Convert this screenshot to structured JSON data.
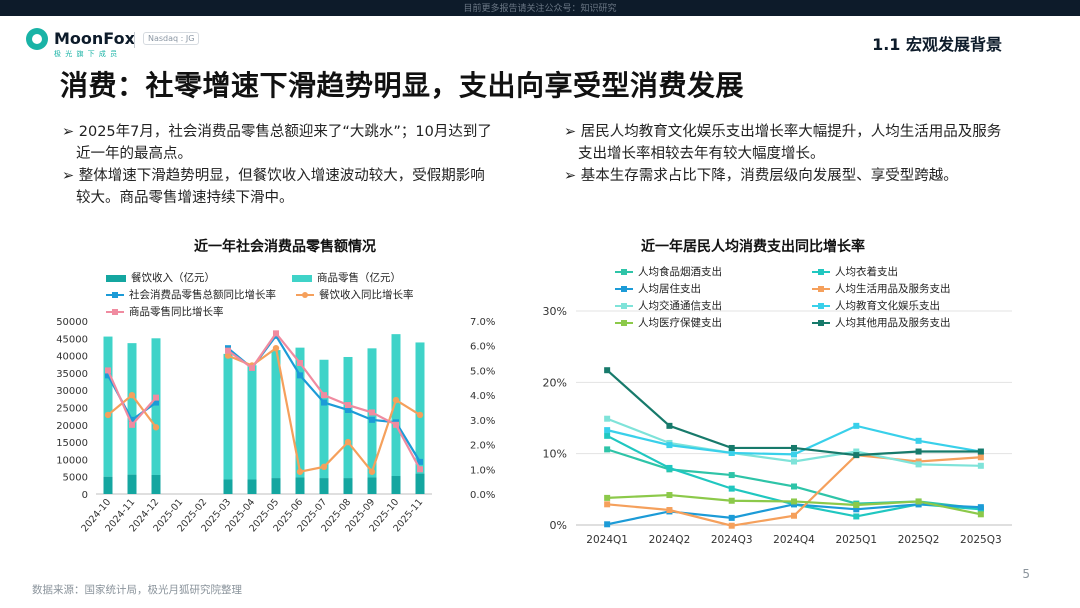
{
  "topbar_text": "目前更多报告请关注公众号：知识研究",
  "brand": {
    "name": "MoonFox",
    "sub": "极 光 旗 下 成 员",
    "badge": "Nasdaq : JG"
  },
  "section_title": "1.1 宏观发展背景",
  "title": "消费：社零增速下滑趋势明显，支出向享受型消费发展",
  "bullets_left": [
    "➢ 2025年7月，社会消费品零售总额迎来了“大跳水”；10月达到了近一年的最高点。",
    "➢ 整体增速下滑趋势明显，但餐饮收入增速波动较大，受假期影响较大。商品零售增速持续下滑中。"
  ],
  "bullets_right": [
    "➢ 居民人均教育文化娱乐支出增长率大幅提升，人均生活用品及服务支出增长率相较去年有较大幅度增长。",
    "➢ 基本生存需求占比下降，消费层级向发展型、享受型跨越。"
  ],
  "footer": "数据来源：国家统计局，极光月狐研究院整理",
  "page_number": "5",
  "colors": {
    "teal_dark": "#14a6a0",
    "teal_light": "#3fd3c8",
    "blue": "#1c9bd7",
    "orange": "#f5a05c",
    "pink": "#f08ba0"
  },
  "chart_data": [
    {
      "type": "bar",
      "title": "近一年社会消费品零售额情况",
      "categories": [
        "2024-10",
        "2024-11",
        "2024-12",
        "2025-01",
        "2025-02",
        "2025-03",
        "2025-04",
        "2025-05",
        "2025-06",
        "2025-07",
        "2025-08",
        "2025-09",
        "2025-10",
        "2025-11"
      ],
      "series": [
        {
          "name": "餐饮收入（亿元）",
          "kind": "bar",
          "axis": "left",
          "color": "#14a6a0",
          "values": [
            5000,
            5600,
            5500,
            null,
            null,
            4200,
            4200,
            4600,
            4800,
            4600,
            4600,
            4800,
            5200,
            5900
          ]
        },
        {
          "name": "商品零售（亿元）",
          "kind": "bar",
          "axis": "left",
          "color": "#3fd3c8",
          "values": [
            40500,
            38000,
            39500,
            null,
            null,
            36300,
            33000,
            37000,
            37500,
            34200,
            35000,
            37300,
            41000,
            37900
          ]
        },
        {
          "name": "社会消费品零售总额同比增长率",
          "kind": "line",
          "axis": "right",
          "color": "#1c9bd7",
          "values": [
            4.8,
            3.0,
            3.7,
            null,
            null,
            5.9,
            5.1,
            6.4,
            4.8,
            3.7,
            3.4,
            3.0,
            2.9,
            1.3
          ]
        },
        {
          "name": "餐饮收入同比增长率",
          "kind": "line",
          "axis": "right",
          "color": "#f5a05c",
          "values": [
            3.2,
            4.0,
            2.7,
            null,
            null,
            5.6,
            5.2,
            5.9,
            0.9,
            1.1,
            2.1,
            0.9,
            3.8,
            3.2
          ]
        },
        {
          "name": "商品零售同比增长率",
          "kind": "line",
          "axis": "right",
          "color": "#f08ba0",
          "values": [
            5.0,
            2.8,
            3.9,
            null,
            null,
            5.8,
            5.1,
            6.5,
            5.3,
            4.0,
            3.6,
            3.3,
            2.8,
            1.0
          ]
        }
      ],
      "left_ticks": [
        "50000",
        "45000",
        "40000",
        "35000",
        "30000",
        "25000",
        "20000",
        "15000",
        "10000",
        "5000",
        "0"
      ],
      "right_ticks": [
        "7.0%",
        "6.0%",
        "5.0%",
        "4.0%",
        "3.0%",
        "2.0%",
        "1.0%",
        "0.0%"
      ],
      "ylim_left": [
        0,
        50000
      ],
      "ylim_right": [
        0,
        7
      ],
      "legend": "top"
    },
    {
      "type": "line",
      "title": "近一年居民人均消费支出同比增长率",
      "categories": [
        "2024Q1",
        "2024Q2",
        "2024Q3",
        "2024Q4",
        "2025Q1",
        "2025Q2",
        "2025Q3"
      ],
      "series": [
        {
          "name": "人均食品烟酒支出",
          "color": "#2ec4a8",
          "values": [
            10.6,
            7.8,
            7.0,
            5.4,
            3.0,
            3.3,
            2.3
          ]
        },
        {
          "name": "人均衣着支出",
          "color": "#20c7c0",
          "values": [
            12.5,
            8.0,
            5.1,
            2.9,
            1.2,
            2.9,
            2.2
          ]
        },
        {
          "name": "人均居住支出",
          "color": "#1c9bd7",
          "values": [
            0.1,
            1.9,
            1.0,
            2.9,
            2.2,
            2.9,
            2.5
          ]
        },
        {
          "name": "人均生活用品及服务支出",
          "color": "#f5a05c",
          "values": [
            2.9,
            2.1,
            -0.1,
            1.3,
            9.8,
            8.9,
            9.5
          ]
        },
        {
          "name": "人均交通通信支出",
          "color": "#7fe3d9",
          "values": [
            14.9,
            11.5,
            10.1,
            8.9,
            10.3,
            8.5,
            8.3
          ]
        },
        {
          "name": "人均教育文化娱乐支出",
          "color": "#39d0ea",
          "values": [
            13.3,
            11.2,
            10.1,
            9.9,
            13.9,
            11.8,
            10.3
          ]
        },
        {
          "name": "人均医疗保健支出",
          "color": "#8cc94a",
          "values": [
            3.8,
            4.2,
            3.4,
            3.3,
            2.8,
            3.3,
            1.5
          ]
        },
        {
          "name": "人均其他用品及服务支出",
          "color": "#177a6b",
          "values": [
            21.7,
            13.9,
            10.8,
            10.8,
            9.8,
            10.3,
            10.3
          ]
        }
      ],
      "y_ticks": [
        "30%",
        "20%",
        "10%",
        "0%"
      ],
      "ylim": [
        0,
        30
      ],
      "grid": true,
      "legend": "top"
    }
  ]
}
